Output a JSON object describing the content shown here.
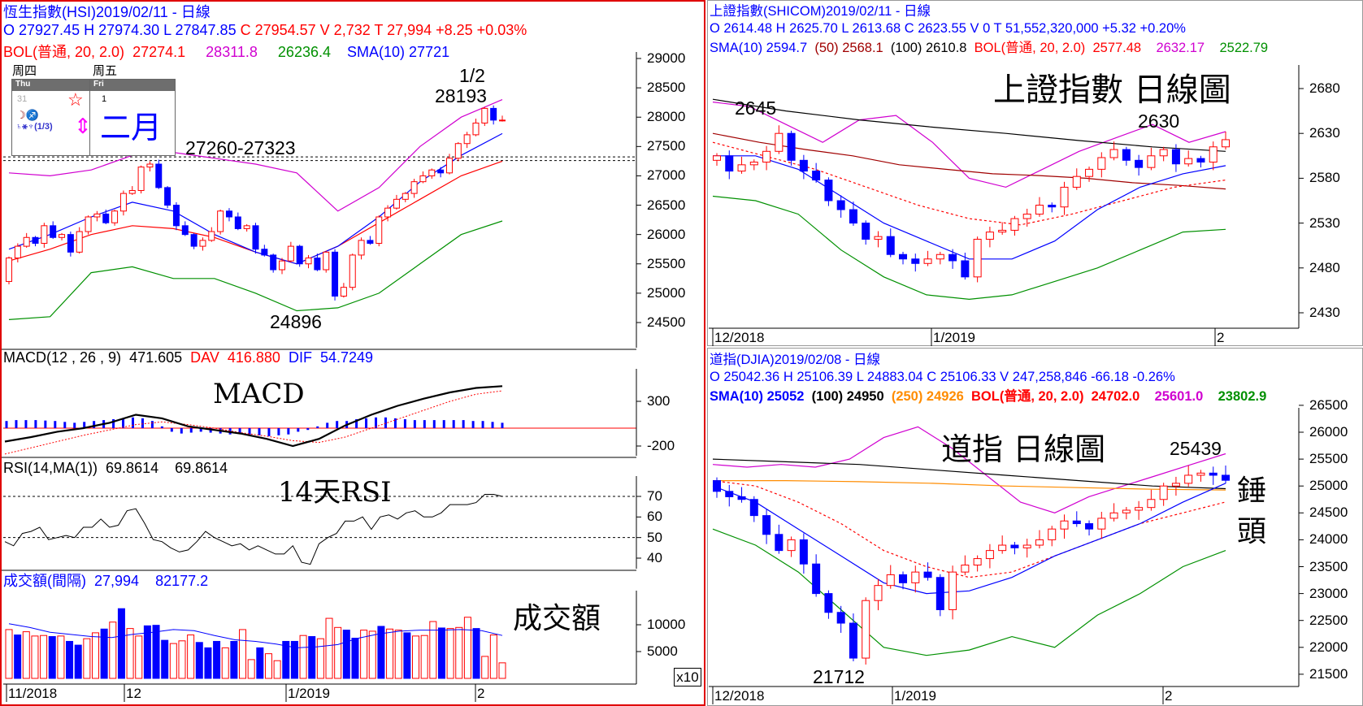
{
  "hsi": {
    "title": "恆生指數(HSI)2019/02/11   - 日線",
    "ohlc_line": "O 27927.45 H 27974.30 L 27847.85",
    "ohlc_line_c": "C 27954.57 V 2,732 T 27,994  +8.25  +0.03%",
    "bol_label": "BOL(普通, 20, 2.0)",
    "bol_mid": "27274.1",
    "bol_up": "28311.8",
    "bol_low": "26236.4",
    "sma_label": "SMA(10) 27721",
    "calendar": {
      "day1_cn": "周四",
      "day2_cn": "周五",
      "day1_en": "Thu",
      "day2_en": "Fri",
      "day1_num": "31",
      "day2_num": "1",
      "month": "二月",
      "star": "☆",
      "astro1": "☽♐",
      "astro2": "♄⚹♆(1/3)",
      "arrow": "⇕"
    },
    "annotations": {
      "peak_date": "1/2",
      "peak_value": "28193",
      "resistance": "27260-27323",
      "trough": "24896"
    },
    "y_ticks": [
      "29000",
      "28500",
      "28000",
      "27500",
      "27000",
      "26500",
      "26000",
      "25500",
      "25000",
      "24500"
    ],
    "macd": {
      "label": "MACD(12 , 26 , 9)",
      "value": "471.605",
      "dav_label": "DAV",
      "dav": "416.880",
      "dif_label": "DIF",
      "dif": "54.7249",
      "title": "MACD",
      "ticks": [
        "300",
        "-200"
      ]
    },
    "rsi": {
      "label": "RSI(14,MA(1))",
      "v1": "69.8614",
      "v2": "69.8614",
      "title": "14天RSI",
      "ticks": [
        "70",
        "60",
        "50",
        "40"
      ]
    },
    "volume": {
      "label": "成交額(間隔)",
      "v1": "27,994",
      "v2": "82177.2",
      "title": "成交額",
      "ticks": [
        "10000",
        "5000"
      ],
      "unit": "x10"
    },
    "dates": [
      "11/2018",
      "12",
      "1/2019",
      "2"
    ]
  },
  "shcom": {
    "title": "上證指數(SHICOM)2019/02/11   - 日線",
    "ohlc": "O 2614.48 H 2625.70 L 2613.68 C 2623.55 V 0 T 51,552,320,000  +5.32  +0.20%",
    "sma10": "SMA(10) 2594.7",
    "sma50": "(50) 2568.1",
    "sma100": "(100) 2610.8",
    "bol_label": "BOL(普通, 20, 2.0)",
    "bol_mid": "2577.48",
    "bol_up": "2632.17",
    "bol_low": "2522.79",
    "big_title": "上證指數  日線圖",
    "annotations": {
      "high1": "2645",
      "high2": "2630"
    },
    "y_ticks": [
      "2680",
      "2630",
      "2580",
      "2530",
      "2480",
      "2430"
    ],
    "dates": [
      "12/2018",
      "1/2019",
      "2"
    ]
  },
  "djia": {
    "title": "道指(DJIA)2019/02/08   - 日線",
    "ohlc": "O 25042.36 H 25106.39 L 24883.04 C 25106.33 V 247,258,846  -66.18  -0.26%",
    "sma10": "SMA(10) 25052",
    "sma100": "(100) 24950",
    "sma250": "(250) 24926",
    "bol_label": "BOL(普通, 20, 2.0)",
    "bol_mid": "24702.0",
    "bol_up": "25601.0",
    "bol_low": "23802.9",
    "big_title": "道指 日線圖",
    "annotations": {
      "high": "25439",
      "low": "21712",
      "hammer1": "錘",
      "hammer2": "頭"
    },
    "y_ticks": [
      "26500",
      "26000",
      "25500",
      "25000",
      "24500",
      "24000",
      "23500",
      "23000",
      "22500",
      "22000",
      "21500"
    ],
    "dates": [
      "12/2018",
      "1/2019",
      "2"
    ]
  },
  "colors": {
    "up": "#ff0000",
    "down": "#0000ff",
    "bol_up": "#d000d0",
    "bol_mid": "#ff0000",
    "bol_low": "#009000",
    "sma10": "#0000ff",
    "sma50": "#a00000",
    "sma100": "#000000",
    "sma250": "#ff8c00"
  },
  "chart_data": [
    {
      "type": "candlestick",
      "title": "恆生指數(HSI) 日線",
      "ylim": [
        24500,
        29000
      ],
      "closes": [
        25600,
        25800,
        25950,
        25850,
        26150,
        25950,
        26000,
        25700,
        26050,
        26300,
        26350,
        26200,
        26400,
        26700,
        26750,
        27150,
        27200,
        26800,
        26500,
        26150,
        26000,
        25800,
        25900,
        26050,
        26400,
        26300,
        26100,
        26150,
        25750,
        25650,
        25400,
        25550,
        25800,
        25500,
        25600,
        25400,
        25700,
        24950,
        25100,
        25650,
        25900,
        25850,
        26300,
        26450,
        26600,
        26700,
        26900,
        27000,
        27100,
        27050,
        27300,
        27550,
        27700,
        27900,
        28150,
        27950,
        27950
      ],
      "first_open": 25200,
      "bol_upper": [
        27050,
        27000,
        27100,
        27350,
        27400,
        27300,
        27200,
        27050,
        26400,
        26800,
        27500,
        28000,
        28300
      ],
      "bol_mid": [
        25550,
        25750,
        26000,
        26150,
        26100,
        25950,
        25700,
        25500,
        25800,
        26200,
        26600,
        27000,
        27250
      ],
      "bol_lower": [
        24550,
        24600,
        25350,
        25450,
        25250,
        25250,
        25000,
        24700,
        24750,
        25000,
        25500,
        26000,
        26230
      ],
      "sma10": [
        25750,
        26000,
        26300,
        26550,
        26400,
        26000,
        25700,
        25500,
        25800,
        26300,
        26900,
        27350,
        27720
      ],
      "levels": [
        27260,
        27323
      ]
    },
    {
      "type": "line",
      "title": "MACD(12,26,9)",
      "ylim": [
        -300,
        500
      ],
      "macd": [
        -150,
        -100,
        -40,
        0,
        60,
        150,
        110,
        20,
        -20,
        -60,
        -120,
        -200,
        -120,
        30,
        150,
        250,
        330,
        400,
        450,
        470
      ],
      "signal": [
        -290,
        -220,
        -150,
        -80,
        -20,
        40,
        70,
        40,
        0,
        -50,
        -90,
        -140,
        -160,
        -100,
        0,
        100,
        200,
        300,
        380,
        417
      ],
      "histogram": [
        80,
        90,
        90,
        90,
        85,
        80,
        70,
        60,
        70,
        80,
        90,
        100,
        110,
        120,
        110,
        80,
        20,
        -40,
        -60,
        -50,
        -40,
        -50,
        -60,
        -70,
        -60,
        -70,
        -80,
        -90,
        -80,
        -70,
        -40,
        -20,
        20,
        60,
        80,
        80,
        100,
        110,
        120,
        120,
        110,
        100,
        90,
        90,
        90,
        90,
        90,
        90,
        80,
        80,
        70,
        60
      ]
    },
    {
      "type": "line",
      "title": "RSI(14)",
      "ylim": [
        35,
        80
      ],
      "values": [
        48,
        46,
        52,
        53,
        55,
        49,
        50,
        51,
        50,
        55,
        55,
        59,
        55,
        56,
        63,
        64,
        57,
        49,
        48,
        45,
        43,
        44,
        48,
        53,
        50,
        48,
        46,
        47,
        44,
        46,
        44,
        42,
        42,
        46,
        38,
        37,
        47,
        50,
        52,
        58,
        58,
        60,
        54,
        60,
        61,
        59,
        62,
        63,
        60,
        60,
        62,
        66,
        66,
        66,
        67,
        71,
        71,
        70
      ],
      "levels": [
        70,
        50
      ]
    },
    {
      "type": "bar",
      "title": "成交額",
      "unit": "x10",
      "values": [
        9100,
        8100,
        8700,
        7900,
        8000,
        7800,
        7900,
        6900,
        6200,
        7400,
        8500,
        9200,
        10500,
        13000,
        9300,
        7900,
        9800,
        9900,
        7100,
        6500,
        7000,
        8100,
        6700,
        5700,
        6900,
        5700,
        6900,
        9100,
        3500,
        5700,
        4600,
        3300,
        6900,
        6900,
        8000,
        7800,
        7400,
        11200,
        9500,
        9000,
        7500,
        9000,
        8800,
        9700,
        9200,
        9000,
        8500,
        7900,
        8000,
        10600,
        9400,
        9300,
        9500,
        11400,
        9300,
        4100,
        8100,
        2900
      ],
      "up": [
        1,
        0,
        1,
        1,
        1,
        0,
        1,
        0,
        0,
        1,
        1,
        0,
        1,
        0,
        1,
        1,
        0,
        0,
        0,
        1,
        1,
        1,
        0,
        0,
        0,
        1,
        0,
        1,
        1,
        0,
        1,
        1,
        0,
        0,
        1,
        0,
        1,
        1,
        1,
        0,
        0,
        1,
        1,
        0,
        1,
        1,
        0,
        1,
        1,
        1,
        0,
        1,
        1,
        1,
        0,
        1,
        1,
        1
      ],
      "ma": [
        10200,
        9500,
        8600,
        8200,
        7800,
        7600,
        8200,
        8600,
        9100,
        8900,
        8000,
        7200,
        6900,
        6400,
        5700,
        5900,
        6300,
        7500,
        8300,
        8800,
        9000,
        9000,
        9100,
        8900,
        8000
      ]
    },
    {
      "type": "candlestick",
      "title": "上證指數(SHICOM) 日線",
      "ylim": [
        2420,
        2700
      ],
      "closes": [
        2605,
        2588,
        2595,
        2598,
        2610,
        2630,
        2600,
        2588,
        2578,
        2555,
        2545,
        2530,
        2512,
        2515,
        2495,
        2490,
        2485,
        2490,
        2495,
        2488,
        2470,
        2512,
        2520,
        2522,
        2535,
        2540,
        2550,
        2548,
        2570,
        2582,
        2590,
        2603,
        2612,
        2600,
        2592,
        2605,
        2612,
        2596,
        2602,
        2598,
        2615,
        2623
      ],
      "first_open": 2600,
      "bol_upper": [
        2665,
        2660,
        2640,
        2620,
        2645,
        2650,
        2620,
        2580,
        2570,
        2590,
        2610,
        2625,
        2640,
        2620,
        2632
      ],
      "bol_mid": [
        2620,
        2605,
        2590,
        2570,
        2550,
        2535,
        2528,
        2540,
        2555,
        2570,
        2578
      ],
      "bol_lower": [
        2560,
        2555,
        2540,
        2500,
        2470,
        2450,
        2445,
        2450,
        2465,
        2480,
        2500,
        2520,
        2523
      ],
      "sma10": [
        2605,
        2605,
        2590,
        2560,
        2530,
        2510,
        2490,
        2490,
        2510,
        2545,
        2570,
        2585,
        2594
      ],
      "sma50": [
        2630,
        2620,
        2612,
        2605,
        2595,
        2590,
        2585,
        2583,
        2580,
        2575,
        2572,
        2568
      ],
      "sma100": [
        2668,
        2655,
        2645,
        2637,
        2630,
        2622,
        2615,
        2610
      ]
    },
    {
      "type": "candlestick",
      "title": "道指(DJIA) 日線",
      "ylim": [
        21300,
        26700
      ],
      "closes": [
        24900,
        24800,
        24750,
        24450,
        24100,
        23800,
        24000,
        23550,
        23000,
        22650,
        22450,
        21800,
        22870,
        23150,
        23350,
        23200,
        23400,
        23300,
        22700,
        23400,
        23530,
        23650,
        23800,
        23900,
        23850,
        23900,
        24000,
        24200,
        24350,
        24300,
        24200,
        24400,
        24500,
        24550,
        24600,
        24750,
        25000,
        25050,
        25200,
        25240,
        25200,
        25106
      ],
      "first_open": 25100,
      "bol_upper": [
        25400,
        25350,
        25400,
        25350,
        25500,
        25900,
        26100,
        25700,
        25200,
        24700,
        24500,
        24800,
        25000,
        25200,
        25400,
        25600
      ],
      "bol_mid": [
        25100,
        25000,
        24700,
        24300,
        23800,
        23500,
        23300,
        23400,
        23700,
        24000,
        24300,
        24500,
        24702
      ],
      "bol_lower": [
        24200,
        23900,
        23400,
        22700,
        22000,
        21850,
        21950,
        22200,
        22000,
        22600,
        23000,
        23500,
        23800
      ],
      "sma10": [
        25000,
        24700,
        24200,
        23700,
        23200,
        23000,
        23050,
        23300,
        23700,
        24000,
        24300,
        24700,
        25052
      ],
      "sma100": [
        25500,
        25450,
        25400,
        25300,
        25200,
        25100,
        25000,
        24950
      ],
      "sma250": [
        25100,
        25100,
        25080,
        25050,
        25000,
        24970,
        24940,
        24926
      ]
    }
  ]
}
